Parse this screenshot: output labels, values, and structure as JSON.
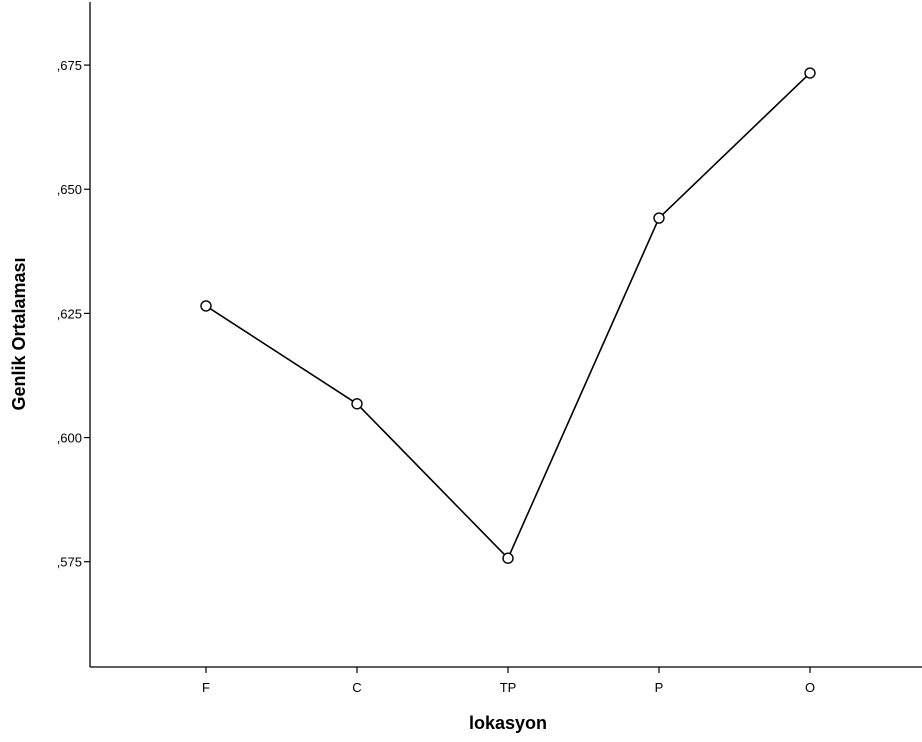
{
  "chart_data": {
    "type": "line",
    "categories": [
      "F",
      "C",
      "TP",
      "P",
      "O"
    ],
    "series": [
      {
        "values": [
          0.6265,
          0.6068,
          0.5757,
          0.6442,
          0.6734
        ]
      }
    ],
    "xlabel": "lokasyon",
    "ylabel": "Genlik Ortalaması",
    "ylim": [
      0.5538,
      0.6877
    ],
    "yticks": [
      0.575,
      0.6,
      0.625,
      0.65,
      0.675
    ],
    "ytick_labels": [
      ",575",
      ",600",
      ",625",
      ",650",
      ",675"
    ],
    "grid": false,
    "legend": "none",
    "line_color": "#000000",
    "marker": "open-circle"
  }
}
